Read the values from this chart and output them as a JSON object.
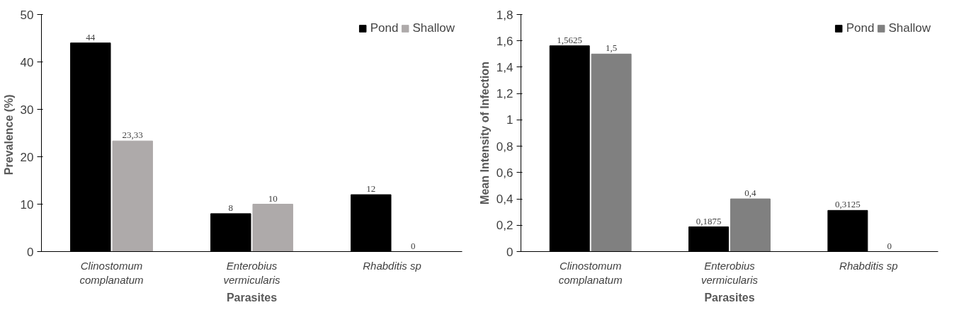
{
  "chart_data": [
    {
      "type": "bar",
      "xlabel": "Parasites",
      "ylabel": "Prevalence  (%)",
      "categories": [
        "Clinostomum complanatum",
        "Enterobius vermicularis",
        "Rhabditis sp"
      ],
      "ylim": [
        0,
        50
      ],
      "yticks": [
        0,
        10,
        20,
        30,
        40,
        50
      ],
      "legend": "top right",
      "series": [
        {
          "name": "Pond",
          "color": "#000000",
          "values": [
            44,
            8,
            12
          ],
          "value_labels": [
            "44",
            "8",
            "12"
          ]
        },
        {
          "name": "Shallow",
          "color": "#aeaaaa",
          "values": [
            23.33,
            10,
            0
          ],
          "value_labels": [
            "23,33",
            "10",
            "0"
          ]
        }
      ]
    },
    {
      "type": "bar",
      "xlabel": "Parasites",
      "ylabel": "Mean Intensity of Infection",
      "categories": [
        "Clinostomum complanatum",
        "Enterobius vermicularis",
        "Rhabditis sp"
      ],
      "ylim": [
        0,
        1.8
      ],
      "yticks": [
        0,
        {
          "value": 0.2,
          "label": "0,2"
        },
        {
          "value": 0.4,
          "label": "0,4"
        },
        {
          "value": 0.6,
          "label": "0,6"
        },
        {
          "value": 0.8,
          "label": "0,8"
        },
        1,
        {
          "value": 1.2,
          "label": "1,2"
        },
        {
          "value": 1.4,
          "label": "1,4"
        },
        {
          "value": 1.6,
          "label": "1,6"
        },
        {
          "value": 1.8,
          "label": "1,8"
        }
      ],
      "legend": "top right",
      "series": [
        {
          "name": "Pond",
          "color": "#000000",
          "values": [
            1.5625,
            0.1875,
            0.3125
          ],
          "value_labels": [
            "1,5625",
            "0,1875",
            "0,3125"
          ]
        },
        {
          "name": "Shallow",
          "color": "#808080",
          "values": [
            1.5,
            0.4,
            0
          ],
          "value_labels": [
            "1,5",
            "0,4",
            "0"
          ]
        }
      ]
    }
  ]
}
